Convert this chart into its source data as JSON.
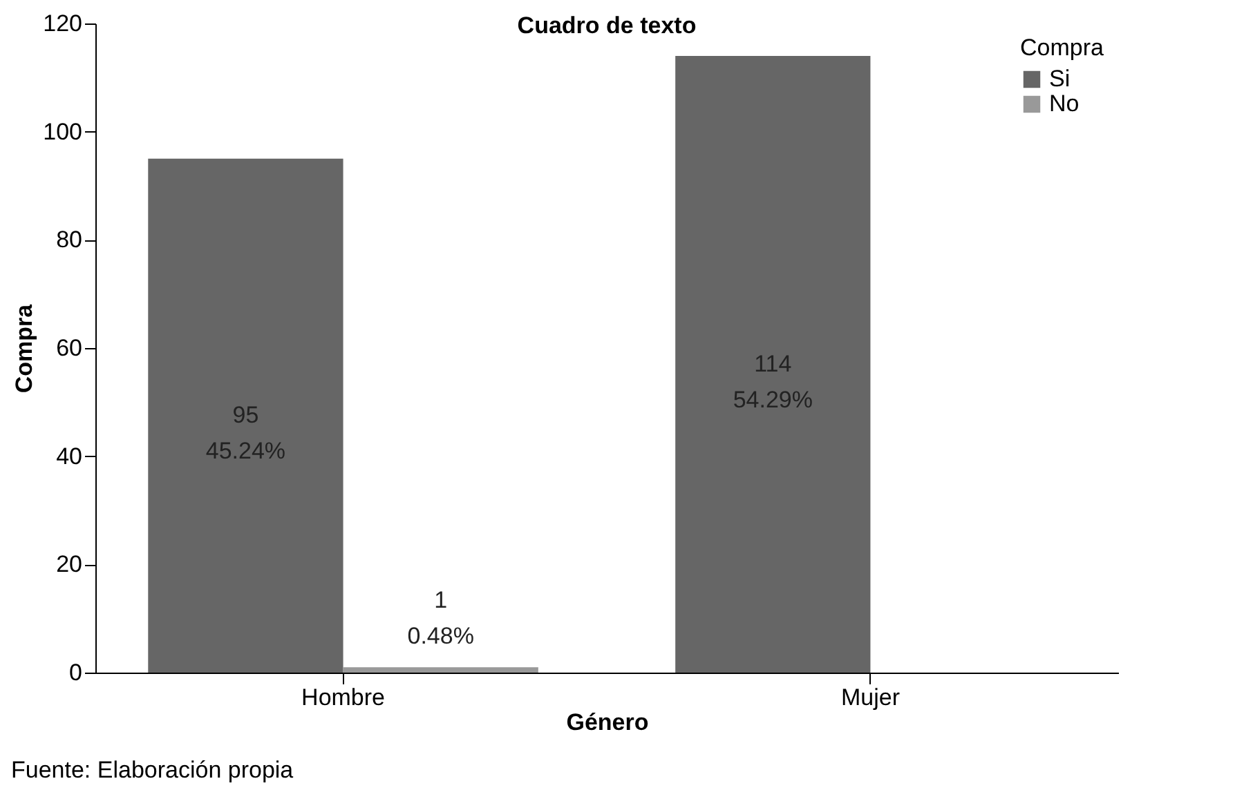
{
  "chart_data": {
    "type": "bar",
    "title": "Cuadro de texto",
    "xlabel": "Género",
    "ylabel": "Compra",
    "legend_title": "Compra",
    "categories": [
      "Hombre",
      "Mujer"
    ],
    "series": [
      {
        "name": "Si",
        "color": "#666666",
        "values": [
          95,
          114
        ],
        "value_labels": [
          "95\n45.24%",
          "114\n54.29%"
        ]
      },
      {
        "name": "No",
        "color": "#999999",
        "values": [
          1,
          null
        ],
        "value_labels": [
          "1\n0.48%",
          null
        ]
      }
    ],
    "ylim": [
      0,
      120
    ],
    "yticks": [
      0,
      20,
      40,
      60,
      80,
      100,
      120
    ],
    "grid": false,
    "legend": "top right",
    "annotations": [
      "Fuente: Elaboración propia"
    ]
  }
}
